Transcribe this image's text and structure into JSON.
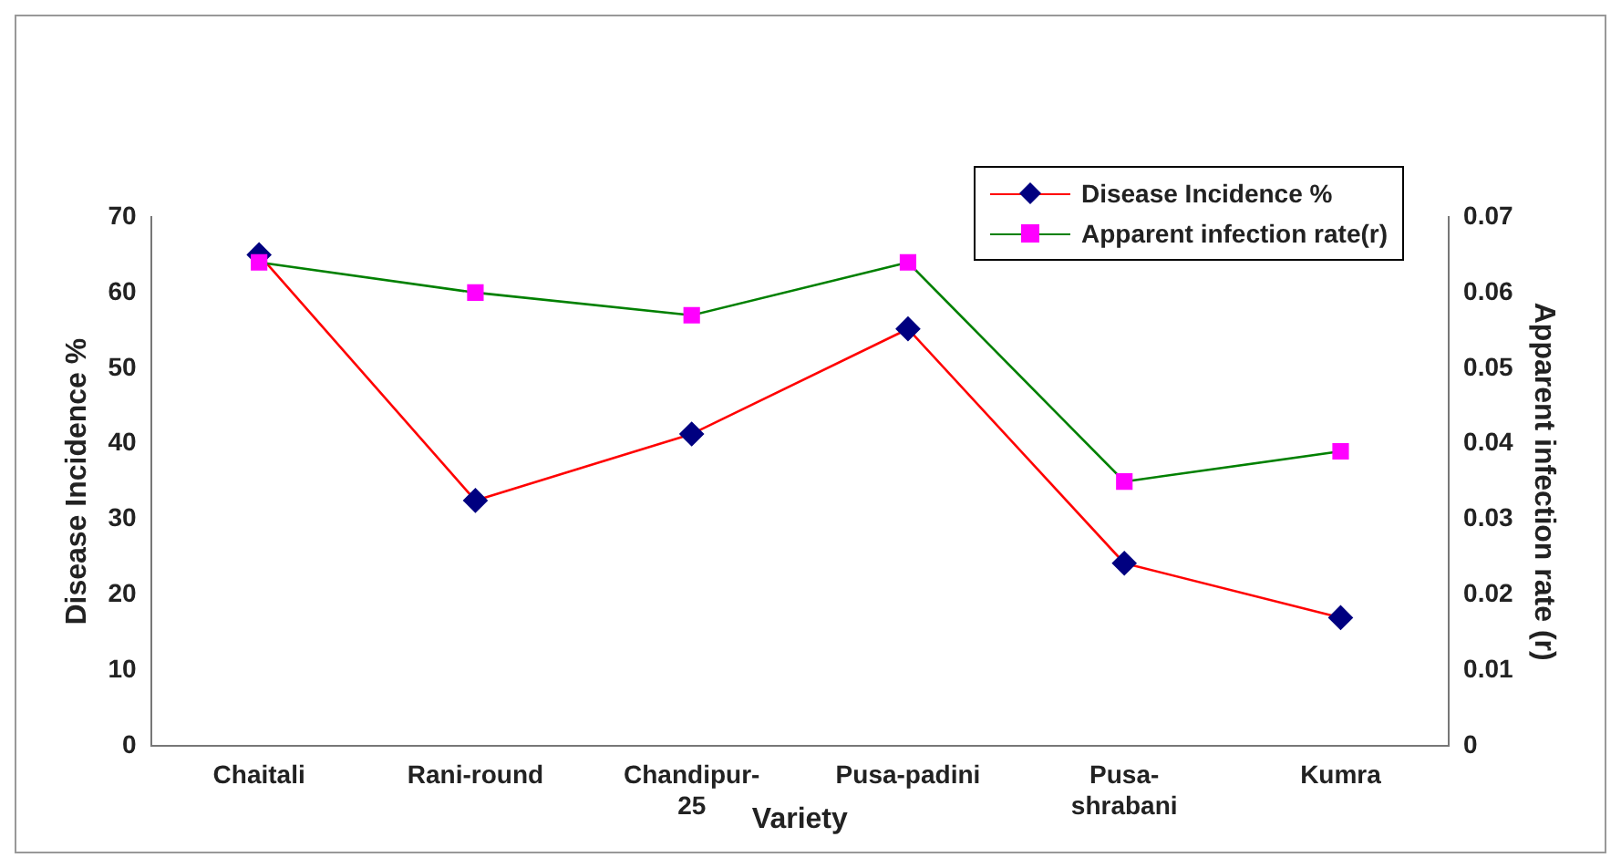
{
  "chart_data": {
    "type": "line",
    "xlabel": "Variety",
    "ylabel": "Disease Incidence %",
    "y2label": "Apparent infection rate (r)",
    "categories": [
      "Chaitali",
      "Rani-round",
      "Chandipur-25",
      "Pusa-padini",
      "Pusa-shrabani",
      "Kumra"
    ],
    "series": [
      {
        "name": "Disease Incidence %",
        "color": "#ff0000",
        "marker": "diamond",
        "values": [
          65,
          32.5,
          41.3,
          55.2,
          24.2,
          17
        ]
      },
      {
        "name": "Apparent infection rate(r)",
        "color": "#008000",
        "marker": "square",
        "axis": "y2",
        "values": [
          0.064,
          0.06,
          0.057,
          0.064,
          0.035,
          0.039
        ]
      }
    ],
    "ylim": [
      0,
      70
    ],
    "yticks": [
      0,
      10,
      20,
      30,
      40,
      50,
      60,
      70
    ],
    "y2lim": [
      0,
      0.07
    ],
    "y2ticks": [
      0,
      0.01,
      0.02,
      0.03,
      0.04,
      0.05,
      0.06,
      0.07
    ],
    "grid": false,
    "legend": "top right"
  }
}
